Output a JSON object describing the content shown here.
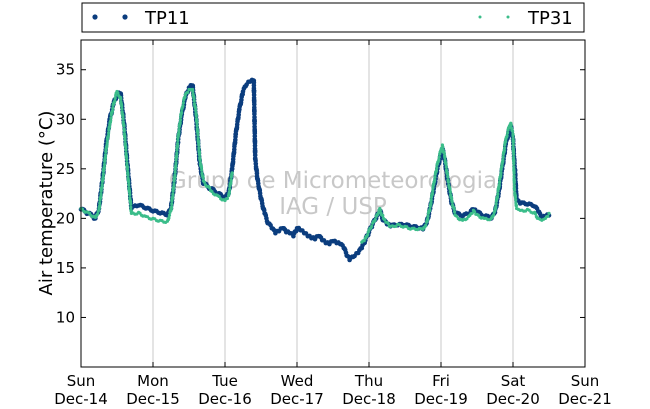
{
  "chart_data": {
    "type": "scatter",
    "ylabel": "Air temperature (°C)",
    "ylim": [
      5,
      38
    ],
    "yticks": [
      10,
      15,
      20,
      25,
      30,
      35
    ],
    "xlim": [
      "2014-12-14",
      "2014-12-21"
    ],
    "xticks": [
      {
        "line1": "Sun",
        "line2": "Dec-14"
      },
      {
        "line1": "Mon",
        "line2": "Dec-15"
      },
      {
        "line1": "Tue",
        "line2": "Dec-16"
      },
      {
        "line1": "Wed",
        "line2": "Dec-17"
      },
      {
        "line1": "Thu",
        "line2": "Dec-18"
      },
      {
        "line1": "Fri",
        "line2": "Dec-19"
      },
      {
        "line1": "Sat",
        "line2": "Dec-20"
      },
      {
        "line1": "Sun",
        "line2": "Dec-21"
      }
    ],
    "grid": "vertical",
    "legend_position": "top",
    "watermark": [
      "Grupo de Micrometeorologia",
      "IAG / USP"
    ],
    "series": [
      {
        "name": "TP11",
        "color": "#0b3d7e",
        "x_days_from": "2014-12-14",
        "points": [
          [
            0.0,
            20.9
          ],
          [
            0.1,
            20.5
          ],
          [
            0.2,
            20.0
          ],
          [
            0.25,
            21.0
          ],
          [
            0.3,
            24.0
          ],
          [
            0.35,
            27.5
          ],
          [
            0.4,
            30.0
          ],
          [
            0.45,
            31.5
          ],
          [
            0.5,
            32.5
          ],
          [
            0.55,
            32.6
          ],
          [
            0.6,
            29.5
          ],
          [
            0.65,
            25.0
          ],
          [
            0.7,
            21.0
          ],
          [
            0.8,
            21.3
          ],
          [
            0.9,
            21.0
          ],
          [
            1.0,
            20.7
          ],
          [
            1.1,
            20.5
          ],
          [
            1.2,
            20.3
          ],
          [
            1.25,
            21.0
          ],
          [
            1.3,
            24.0
          ],
          [
            1.35,
            28.0
          ],
          [
            1.4,
            30.5
          ],
          [
            1.45,
            32.2
          ],
          [
            1.5,
            33.2
          ],
          [
            1.55,
            33.4
          ],
          [
            1.6,
            30.0
          ],
          [
            1.65,
            25.5
          ],
          [
            1.7,
            23.5
          ],
          [
            1.8,
            23.0
          ],
          [
            1.9,
            22.5
          ],
          [
            2.0,
            22.0
          ],
          [
            2.05,
            22.5
          ],
          [
            2.1,
            25.0
          ],
          [
            2.15,
            28.5
          ],
          [
            2.2,
            31.0
          ],
          [
            2.25,
            32.8
          ],
          [
            2.3,
            33.5
          ],
          [
            2.35,
            33.8
          ],
          [
            2.4,
            33.9
          ],
          [
            2.42,
            26.0
          ],
          [
            2.45,
            24.0
          ],
          [
            2.5,
            22.0
          ],
          [
            2.55,
            20.5
          ],
          [
            2.6,
            19.5
          ],
          [
            2.65,
            19.0
          ],
          [
            2.7,
            18.5
          ],
          [
            2.75,
            18.7
          ],
          [
            2.8,
            19.0
          ],
          [
            2.85,
            18.6
          ],
          [
            2.9,
            18.5
          ],
          [
            2.95,
            18.2
          ],
          [
            3.0,
            19.0
          ],
          [
            3.05,
            18.8
          ],
          [
            3.1,
            18.5
          ],
          [
            3.15,
            18.2
          ],
          [
            3.2,
            18.0
          ],
          [
            3.25,
            17.9
          ],
          [
            3.3,
            18.2
          ],
          [
            3.35,
            17.8
          ],
          [
            3.4,
            17.5
          ],
          [
            3.45,
            17.4
          ],
          [
            3.5,
            17.7
          ],
          [
            3.55,
            17.5
          ],
          [
            3.6,
            17.4
          ],
          [
            3.65,
            17.0
          ],
          [
            3.7,
            16.2
          ],
          [
            3.73,
            15.8
          ],
          [
            3.8,
            16.2
          ],
          [
            3.85,
            16.5
          ],
          [
            3.9,
            17.0
          ],
          [
            3.95,
            17.8
          ],
          [
            4.0,
            18.6
          ],
          [
            4.05,
            19.4
          ],
          [
            4.1,
            20.0
          ],
          [
            4.15,
            20.8
          ],
          [
            4.2,
            19.8
          ],
          [
            4.25,
            19.4
          ],
          [
            4.3,
            19.2
          ],
          [
            4.4,
            19.3
          ],
          [
            4.5,
            19.3
          ],
          [
            4.6,
            19.1
          ],
          [
            4.7,
            19.0
          ],
          [
            4.75,
            18.9
          ],
          [
            4.8,
            19.5
          ],
          [
            4.85,
            21.0
          ],
          [
            4.9,
            23.0
          ],
          [
            4.95,
            25.0
          ],
          [
            5.0,
            26.5
          ],
          [
            5.02,
            27.0
          ],
          [
            5.05,
            26.0
          ],
          [
            5.1,
            23.5
          ],
          [
            5.15,
            21.5
          ],
          [
            5.2,
            20.5
          ],
          [
            5.3,
            20.2
          ],
          [
            5.4,
            20.5
          ],
          [
            5.45,
            20.9
          ],
          [
            5.5,
            20.6
          ],
          [
            5.6,
            20.2
          ],
          [
            5.7,
            20.0
          ],
          [
            5.75,
            20.6
          ],
          [
            5.8,
            22.5
          ],
          [
            5.85,
            25.0
          ],
          [
            5.9,
            27.5
          ],
          [
            5.95,
            29.0
          ],
          [
            5.97,
            29.3
          ],
          [
            6.0,
            28.0
          ],
          [
            6.03,
            24.5
          ],
          [
            6.05,
            21.8
          ],
          [
            6.1,
            21.5
          ],
          [
            6.2,
            21.4
          ],
          [
            6.3,
            21.2
          ],
          [
            6.35,
            20.7
          ],
          [
            6.4,
            20.0
          ],
          [
            6.45,
            20.2
          ],
          [
            6.5,
            20.3
          ]
        ]
      },
      {
        "name": "TP31",
        "color": "#3bbd8a",
        "x_days_from": "2014-12-14",
        "points": [
          [
            0.0,
            21.0
          ],
          [
            0.1,
            20.6
          ],
          [
            0.2,
            20.1
          ],
          [
            0.25,
            20.9
          ],
          [
            0.3,
            23.8
          ],
          [
            0.35,
            27.0
          ],
          [
            0.4,
            29.5
          ],
          [
            0.45,
            31.5
          ],
          [
            0.5,
            32.8
          ],
          [
            0.55,
            32.2
          ],
          [
            0.6,
            29.0
          ],
          [
            0.65,
            24.5
          ],
          [
            0.7,
            20.5
          ],
          [
            0.8,
            20.6
          ],
          [
            0.9,
            20.2
          ],
          [
            1.0,
            20.0
          ],
          [
            1.1,
            19.8
          ],
          [
            1.2,
            19.7
          ],
          [
            1.25,
            20.8
          ],
          [
            1.3,
            24.0
          ],
          [
            1.35,
            28.3
          ],
          [
            1.4,
            31.0
          ],
          [
            1.45,
            32.5
          ],
          [
            1.5,
            33.0
          ],
          [
            1.55,
            33.0
          ],
          [
            1.6,
            30.5
          ],
          [
            1.65,
            26.0
          ],
          [
            1.7,
            23.8
          ],
          [
            1.8,
            22.8
          ],
          [
            1.9,
            22.3
          ],
          [
            2.0,
            21.8
          ],
          [
            2.05,
            22.3
          ],
          [
            2.1,
            24.6
          ],
          [
            3.9,
            17.6
          ],
          [
            3.95,
            18.0
          ],
          [
            4.0,
            18.8
          ],
          [
            4.05,
            19.5
          ],
          [
            4.1,
            20.2
          ],
          [
            4.15,
            21.0
          ],
          [
            4.2,
            20.0
          ],
          [
            4.25,
            19.6
          ],
          [
            4.3,
            19.2
          ],
          [
            4.4,
            19.4
          ],
          [
            4.5,
            19.2
          ],
          [
            4.6,
            19.0
          ],
          [
            4.7,
            19.0
          ],
          [
            4.75,
            18.9
          ],
          [
            4.8,
            19.6
          ],
          [
            4.85,
            21.2
          ],
          [
            4.9,
            23.5
          ],
          [
            4.95,
            25.5
          ],
          [
            5.0,
            26.9
          ],
          [
            5.02,
            27.4
          ],
          [
            5.05,
            26.3
          ],
          [
            5.1,
            23.8
          ],
          [
            5.15,
            21.8
          ],
          [
            5.2,
            20.3
          ],
          [
            5.3,
            19.8
          ],
          [
            5.4,
            20.3
          ],
          [
            5.45,
            20.8
          ],
          [
            5.5,
            20.4
          ],
          [
            5.6,
            20.0
          ],
          [
            5.7,
            20.0
          ],
          [
            5.75,
            20.8
          ],
          [
            5.8,
            23.0
          ],
          [
            5.85,
            25.5
          ],
          [
            5.9,
            28.0
          ],
          [
            5.95,
            29.3
          ],
          [
            5.97,
            29.6
          ],
          [
            6.0,
            28.5
          ],
          [
            6.02,
            23.0
          ],
          [
            6.05,
            21.0
          ],
          [
            6.1,
            20.8
          ],
          [
            6.2,
            20.9
          ],
          [
            6.3,
            20.6
          ],
          [
            6.35,
            20.0
          ],
          [
            6.4,
            19.8
          ],
          [
            6.45,
            20.0
          ],
          [
            6.5,
            20.5
          ]
        ]
      }
    ]
  }
}
